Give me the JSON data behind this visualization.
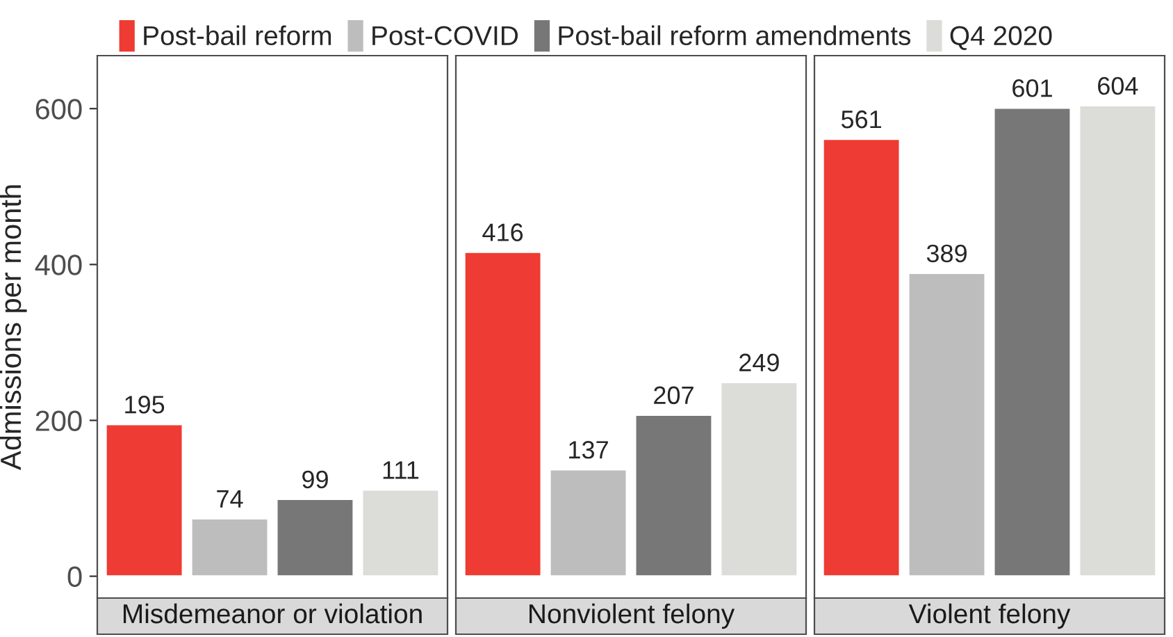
{
  "chart_data": {
    "type": "bar",
    "ylabel": "Admissions per month",
    "categories": [
      "Misdemeanor or violation",
      "Nonviolent felony",
      "Violent felony"
    ],
    "ylim": [
      -28,
      668
    ],
    "yticks": [
      0,
      200,
      400,
      600
    ],
    "data_labels": true,
    "legend": "top",
    "grid": false,
    "series": [
      {
        "name": "Post-bail reform",
        "color": "#ee3b33",
        "values": [
          195,
          416,
          561
        ]
      },
      {
        "name": "Post-COVID",
        "color": "#bdbdbd",
        "values": [
          74,
          137,
          389
        ]
      },
      {
        "name": "Post-bail reform amendments",
        "color": "#777777",
        "values": [
          99,
          207,
          601
        ]
      },
      {
        "name": "Q4 2020",
        "color": "#dcdcd8",
        "values": [
          111,
          249,
          604
        ]
      }
    ]
  }
}
